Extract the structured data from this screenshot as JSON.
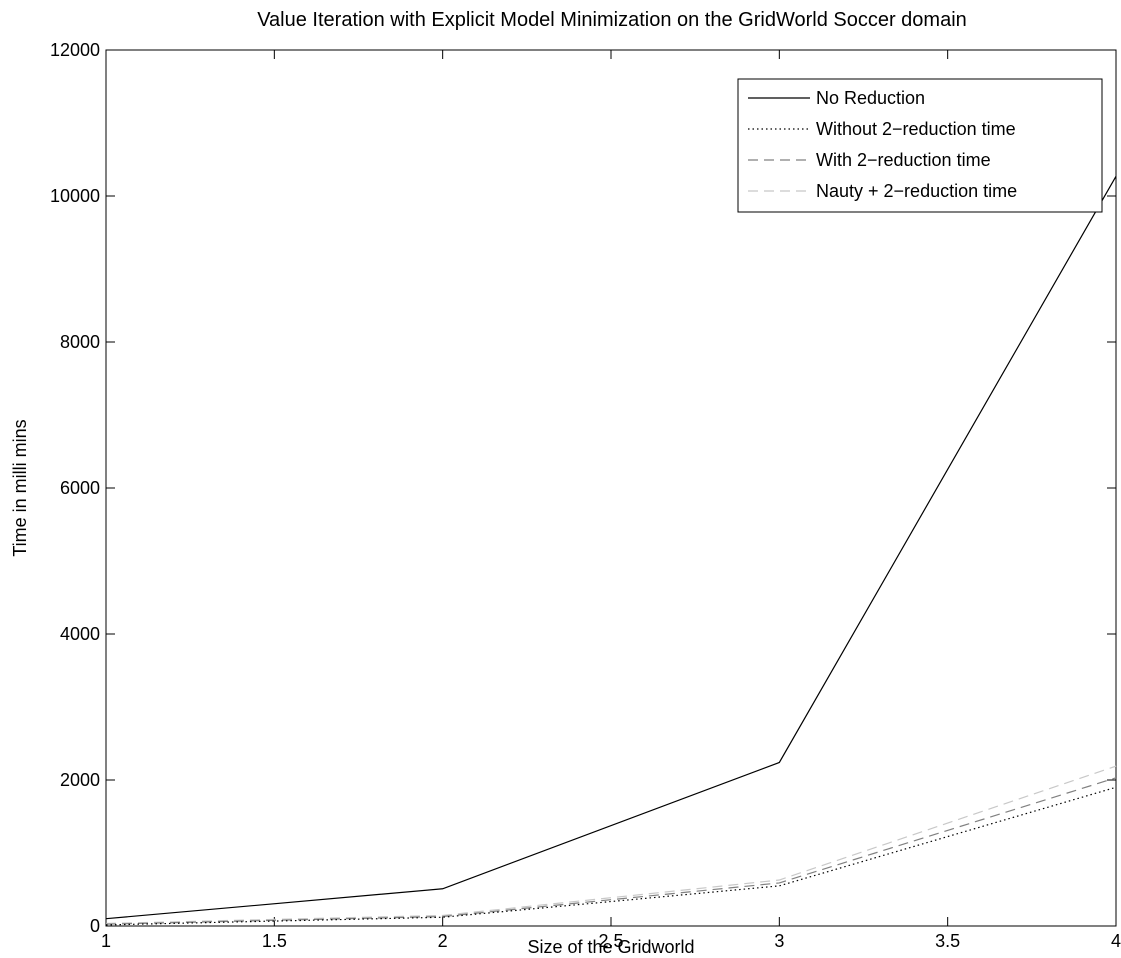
{
  "chart_data": {
    "type": "line",
    "title": "Value Iteration with Explicit Model Minimization on the GridWorld Soccer domain",
    "xlabel": "Size of the Gridworld",
    "ylabel": "Time in milli mins",
    "xlim": [
      1,
      4
    ],
    "ylim": [
      0,
      12000
    ],
    "xticks": [
      1,
      1.5,
      2,
      2.5,
      3,
      3.5,
      4
    ],
    "xtick_labels": [
      "1",
      "1.5",
      "2",
      "2.5",
      "3",
      "3.5",
      "4"
    ],
    "yticks": [
      0,
      2000,
      4000,
      6000,
      8000,
      10000,
      12000
    ],
    "ytick_labels": [
      "0",
      "2000",
      "4000",
      "6000",
      "8000",
      "10000",
      "12000"
    ],
    "grid": false,
    "legend_position": "top-right",
    "x": [
      1,
      2,
      3,
      4
    ],
    "series": [
      {
        "name": "No Reduction",
        "values": [
          100,
          510,
          2240,
          10270
        ],
        "color": "#000000",
        "dash": "solid"
      },
      {
        "name": "Without 2−reduction time",
        "values": [
          15,
          120,
          550,
          1900
        ],
        "color": "#000000",
        "dash": "dotted"
      },
      {
        "name": "With 2−reduction time",
        "values": [
          25,
          130,
          590,
          2030
        ],
        "color": "#808080",
        "dash": "dashed"
      },
      {
        "name": "Nauty + 2−reduction time",
        "values": [
          35,
          145,
          630,
          2190
        ],
        "color": "#c8c8c8",
        "dash": "dashed"
      }
    ]
  }
}
